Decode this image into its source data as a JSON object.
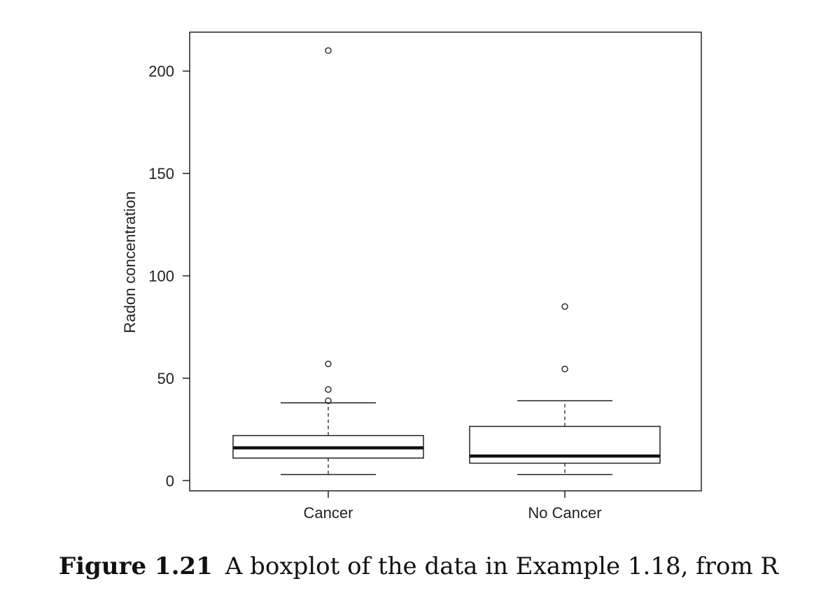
{
  "chart_data": {
    "type": "boxplot",
    "ylabel": "Radon concentration",
    "xlabel": "",
    "ylim": [
      -5,
      219
    ],
    "yticks": [
      "0",
      "50",
      "100",
      "150",
      "200"
    ],
    "grid": false,
    "categories": [
      "Cancer",
      "No Cancer"
    ],
    "boxes": [
      {
        "category": "Cancer",
        "whisker_low": 3,
        "q1": 11,
        "median": 16,
        "q3": 22,
        "whisker_high": 38,
        "outliers": [
          39,
          44.5,
          57,
          210
        ]
      },
      {
        "category": "No Cancer",
        "whisker_low": 3,
        "q1": 8.5,
        "median": 12,
        "q3": 26.5,
        "whisker_high": 39,
        "outliers": [
          54.5,
          85
        ]
      }
    ]
  },
  "caption": {
    "number": "Figure 1.21",
    "text": "A boxplot of the data in Example 1.18, from R"
  }
}
